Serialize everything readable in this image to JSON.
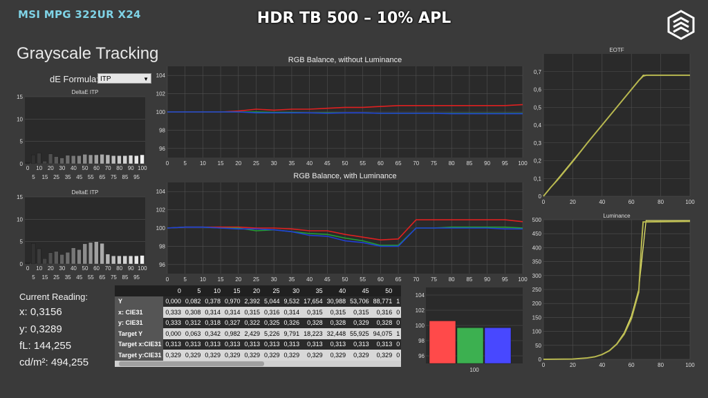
{
  "header": {
    "model": "MSI MPG 322UR X24",
    "banner": "HDR TB 500 – 10% APL"
  },
  "panel": {
    "title": "Grayscale Tracking",
    "de_formula_label": "dE Formula:",
    "de_formula_value": "ITP"
  },
  "current_reading": {
    "title": "Current Reading:",
    "x": "x: 0,3156",
    "y": "y: 0,3289",
    "fl": "fL: 144,255",
    "cdm2": "cd/m²: 494,255"
  },
  "table": {
    "columns": [
      "",
      "0",
      "5",
      "10",
      "15",
      "20",
      "25",
      "30",
      "35",
      "40",
      "45",
      "50",
      ""
    ],
    "rows": [
      {
        "label": "Y",
        "cells": [
          "0,000",
          "0,082",
          "0,378",
          "0,970",
          "2,392",
          "5,044",
          "9,532",
          "17,654",
          "30,988",
          "53,706",
          "88,771",
          "1"
        ]
      },
      {
        "label": "x: CIE31",
        "cells": [
          "0,333",
          "0,308",
          "0,314",
          "0,314",
          "0,315",
          "0,316",
          "0,314",
          "0,315",
          "0,315",
          "0,315",
          "0,316",
          "0"
        ]
      },
      {
        "label": "y: CIE31",
        "cells": [
          "0,333",
          "0,312",
          "0,318",
          "0,327",
          "0,322",
          "0,325",
          "0,326",
          "0,328",
          "0,328",
          "0,329",
          "0,328",
          "0"
        ]
      },
      {
        "label": "Target Y",
        "cells": [
          "0,000",
          "0,063",
          "0,342",
          "0,982",
          "2,429",
          "5,226",
          "9,791",
          "18,223",
          "32,448",
          "55,925",
          "94,075",
          "1"
        ]
      },
      {
        "label": "Target x:CIE31",
        "cells": [
          "0,313",
          "0,313",
          "0,313",
          "0,313",
          "0,313",
          "0,313",
          "0,313",
          "0,313",
          "0,313",
          "0,313",
          "0,313",
          "0"
        ]
      },
      {
        "label": "Target y:CIE31",
        "cells": [
          "0,329",
          "0,329",
          "0,329",
          "0,329",
          "0,329",
          "0,329",
          "0,329",
          "0,329",
          "0,329",
          "0,329",
          "0,329",
          "0"
        ]
      }
    ]
  },
  "colors": {
    "red": "#e02020",
    "green": "#22a033",
    "blue": "#2040d8",
    "yellow": "#d8d838",
    "plot_bg": "#2a2a2a",
    "grid": "#505050"
  },
  "chart_data": [
    {
      "id": "deltae1",
      "type": "bar",
      "title": "DeltaE ITP",
      "ylim": [
        0,
        15
      ],
      "yticks": [
        0,
        5,
        10,
        15
      ],
      "x": [
        0,
        5,
        10,
        15,
        20,
        25,
        30,
        35,
        40,
        45,
        50,
        55,
        60,
        65,
        70,
        75,
        80,
        85,
        90,
        95,
        100
      ],
      "xticks_top": [
        "0",
        "10",
        "20",
        "30",
        "40",
        "50",
        "60",
        "70",
        "80",
        "90",
        "100"
      ],
      "xticks_bottom": [
        "5",
        "15",
        "25",
        "35",
        "45",
        "55",
        "65",
        "75",
        "85",
        "95"
      ],
      "values": [
        0.3,
        2.0,
        2.4,
        0.6,
        2.2,
        1.6,
        1.3,
        1.9,
        1.8,
        1.8,
        2.1,
        2.0,
        2.0,
        2.1,
        2.0,
        1.8,
        1.8,
        1.8,
        1.9,
        1.8,
        2.0
      ]
    },
    {
      "id": "deltae2",
      "type": "bar",
      "title": "DeltaE ITP",
      "ylim": [
        0,
        15
      ],
      "yticks": [
        0,
        5,
        10,
        15
      ],
      "x": [
        0,
        5,
        10,
        15,
        20,
        25,
        30,
        35,
        40,
        45,
        50,
        55,
        60,
        65,
        70,
        75,
        80,
        85,
        90,
        95,
        100
      ],
      "xticks_top": [
        "0",
        "10",
        "20",
        "30",
        "40",
        "50",
        "60",
        "70",
        "80",
        "90",
        "100"
      ],
      "xticks_bottom": [
        "5",
        "15",
        "25",
        "35",
        "45",
        "55",
        "65",
        "75",
        "85",
        "95"
      ],
      "values": [
        0.3,
        4.6,
        3.4,
        1.2,
        2.5,
        2.8,
        2.1,
        2.6,
        3.6,
        3.2,
        4.5,
        4.8,
        5.0,
        4.6,
        2.2,
        1.8,
        1.8,
        1.8,
        1.8,
        1.8,
        1.9
      ]
    },
    {
      "id": "rgb1",
      "type": "line",
      "title": "RGB Balance, without Luminance",
      "ylim": [
        95,
        105
      ],
      "yticks": [
        96,
        98,
        100,
        102,
        104
      ],
      "xticks": [
        0,
        5,
        10,
        15,
        20,
        25,
        30,
        35,
        40,
        45,
        50,
        55,
        60,
        65,
        70,
        75,
        80,
        85,
        90,
        95,
        100
      ],
      "x": [
        0,
        5,
        10,
        15,
        20,
        25,
        30,
        35,
        40,
        45,
        50,
        55,
        60,
        65,
        70,
        75,
        80,
        85,
        90,
        95,
        100
      ],
      "series": [
        {
          "color": "red",
          "values": [
            100,
            100,
            100,
            100,
            100.1,
            100.3,
            100.2,
            100.3,
            100.3,
            100.4,
            100.5,
            100.5,
            100.6,
            100.7,
            100.7,
            100.7,
            100.7,
            100.7,
            100.7,
            100.7,
            100.8
          ]
        },
        {
          "color": "green",
          "values": [
            100,
            100,
            100,
            100,
            100,
            100,
            99.95,
            99.95,
            99.9,
            99.9,
            99.9,
            99.9,
            99.85,
            99.85,
            99.85,
            99.85,
            99.85,
            99.85,
            99.85,
            99.85,
            99.85
          ]
        },
        {
          "color": "blue",
          "values": [
            100,
            100,
            100,
            100,
            100,
            99.9,
            99.9,
            99.9,
            99.9,
            99.85,
            99.9,
            99.9,
            99.85,
            99.85,
            99.85,
            99.85,
            99.8,
            99.8,
            99.8,
            99.8,
            99.8
          ]
        }
      ]
    },
    {
      "id": "rgb2",
      "type": "line",
      "title": "RGB Balance, with Luminance",
      "ylim": [
        95,
        105
      ],
      "yticks": [
        96,
        98,
        100,
        102,
        104
      ],
      "xticks": [
        0,
        5,
        10,
        15,
        20,
        25,
        30,
        35,
        40,
        45,
        50,
        55,
        60,
        65,
        70,
        75,
        80,
        85,
        90,
        95,
        100
      ],
      "x": [
        0,
        5,
        10,
        15,
        20,
        25,
        30,
        35,
        40,
        45,
        50,
        55,
        60,
        65,
        70,
        75,
        80,
        85,
        90,
        95,
        100
      ],
      "series": [
        {
          "color": "red",
          "values": [
            100,
            100.1,
            100.1,
            100.1,
            100.1,
            100,
            100,
            99.9,
            99.7,
            99.7,
            99.3,
            99.0,
            98.7,
            98.8,
            100.9,
            100.9,
            100.9,
            100.9,
            100.9,
            100.9,
            100.7
          ]
        },
        {
          "color": "green",
          "values": [
            100,
            100.1,
            100.1,
            100,
            100,
            99.7,
            99.8,
            99.6,
            99.4,
            99.3,
            98.9,
            98.6,
            98.1,
            98.1,
            100.0,
            100.0,
            100.1,
            100.1,
            100.1,
            100.1,
            100.0
          ]
        },
        {
          "color": "blue",
          "values": [
            100,
            100.1,
            100.1,
            100,
            99.9,
            99.9,
            99.8,
            99.6,
            99.2,
            99.1,
            98.6,
            98.4,
            98.0,
            98.0,
            100.0,
            100.0,
            100.0,
            100.0,
            100.0,
            99.9,
            99.9
          ]
        }
      ]
    },
    {
      "id": "rgbbars",
      "type": "bar",
      "ylim": [
        95,
        105
      ],
      "yticks": [
        96,
        98,
        100,
        102,
        104
      ],
      "categories": [
        "100"
      ],
      "series": [
        {
          "color": "red",
          "values": [
            100.6
          ]
        },
        {
          "color": "green",
          "values": [
            99.7
          ]
        },
        {
          "color": "blue",
          "values": [
            99.7
          ]
        }
      ]
    },
    {
      "id": "eotf",
      "type": "line",
      "title": "EOTF",
      "xlim": [
        0,
        100
      ],
      "ylim": [
        0,
        0.8
      ],
      "xticks": [
        0,
        20,
        40,
        60,
        80,
        100
      ],
      "yticks": [
        "0",
        "0,1",
        "0,2",
        "0,3",
        "0,4",
        "0,5",
        "0,6",
        "0,7"
      ],
      "series": [
        {
          "color": "target",
          "points": [
            [
              0,
              0
            ],
            [
              10,
              0.1
            ],
            [
              20,
              0.2
            ],
            [
              30,
              0.3
            ],
            [
              40,
              0.4
            ],
            [
              50,
              0.5
            ],
            [
              60,
              0.6
            ],
            [
              66,
              0.66
            ],
            [
              68,
              0.68
            ],
            [
              100,
              0.68
            ]
          ]
        },
        {
          "color": "measured",
          "points": [
            [
              0,
              0
            ],
            [
              5,
              0.05
            ],
            [
              10,
              0.095
            ],
            [
              20,
              0.195
            ],
            [
              30,
              0.3
            ],
            [
              40,
              0.4
            ],
            [
              50,
              0.5
            ],
            [
              60,
              0.6
            ],
            [
              65,
              0.65
            ],
            [
              68,
              0.675
            ],
            [
              70,
              0.68
            ],
            [
              100,
              0.68
            ]
          ]
        }
      ]
    },
    {
      "id": "luminance",
      "type": "line",
      "title": "Luminance",
      "xlim": [
        0,
        100
      ],
      "ylim": [
        0,
        500
      ],
      "xticks": [
        0,
        20,
        40,
        60,
        80,
        100
      ],
      "yticks": [
        0,
        50,
        100,
        150,
        200,
        250,
        300,
        350,
        400,
        450,
        500
      ],
      "series": [
        {
          "color": "target",
          "points": [
            [
              0,
              0
            ],
            [
              20,
              1
            ],
            [
              30,
              5
            ],
            [
              35,
              9
            ],
            [
              40,
              18
            ],
            [
              45,
              32
            ],
            [
              50,
              56
            ],
            [
              55,
              94
            ],
            [
              60,
              155
            ],
            [
              65,
              250
            ],
            [
              68,
              400
            ],
            [
              70,
              497
            ],
            [
              100,
              497
            ]
          ]
        },
        {
          "color": "measured",
          "points": [
            [
              0,
              0
            ],
            [
              20,
              1
            ],
            [
              30,
              5
            ],
            [
              35,
              9
            ],
            [
              40,
              17
            ],
            [
              45,
              31
            ],
            [
              50,
              54
            ],
            [
              55,
              89
            ],
            [
              60,
              145
            ],
            [
              65,
              240
            ],
            [
              67,
              420
            ],
            [
              68,
              492
            ],
            [
              100,
              494
            ]
          ]
        }
      ]
    }
  ]
}
